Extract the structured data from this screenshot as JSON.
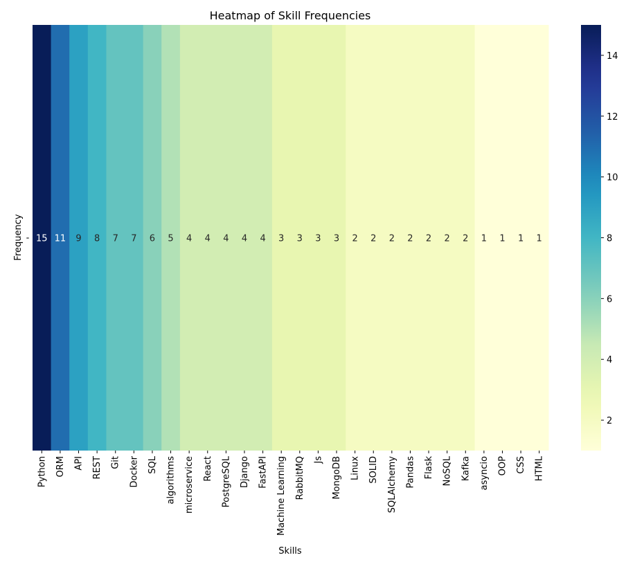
{
  "chart_data": {
    "type": "heatmap",
    "title": "Heatmap of Skill Frequencies",
    "xlabel": "Skills",
    "ylabel": "Frequency",
    "y_tick_labels": [
      "-"
    ],
    "categories": [
      "Python",
      "ORM",
      "API",
      "REST",
      "Git",
      "Docker",
      "SQL",
      "algorithms",
      "microservice",
      "React",
      "PostgreSQL",
      "Django",
      "FastAPI",
      "Machine Learning",
      "RabbitMQ",
      "Js",
      "MongoDB",
      "Linux",
      "SOLID",
      "SQLAlchemy",
      "Pandas",
      "Flask",
      "NoSQL",
      "Kafka",
      "asyncio",
      "OOP",
      "CSS",
      "HTML"
    ],
    "values": [
      15,
      11,
      9,
      8,
      7,
      7,
      6,
      5,
      4,
      4,
      4,
      4,
      4,
      3,
      3,
      3,
      3,
      2,
      2,
      2,
      2,
      2,
      2,
      2,
      1,
      1,
      1,
      1
    ],
    "annotations": true,
    "colormap": "YlGnBu",
    "colorbar": {
      "vmin": 1,
      "vmax": 15,
      "ticks": [
        2,
        4,
        6,
        8,
        10,
        12,
        14
      ]
    },
    "grid": false,
    "legend": "none"
  }
}
